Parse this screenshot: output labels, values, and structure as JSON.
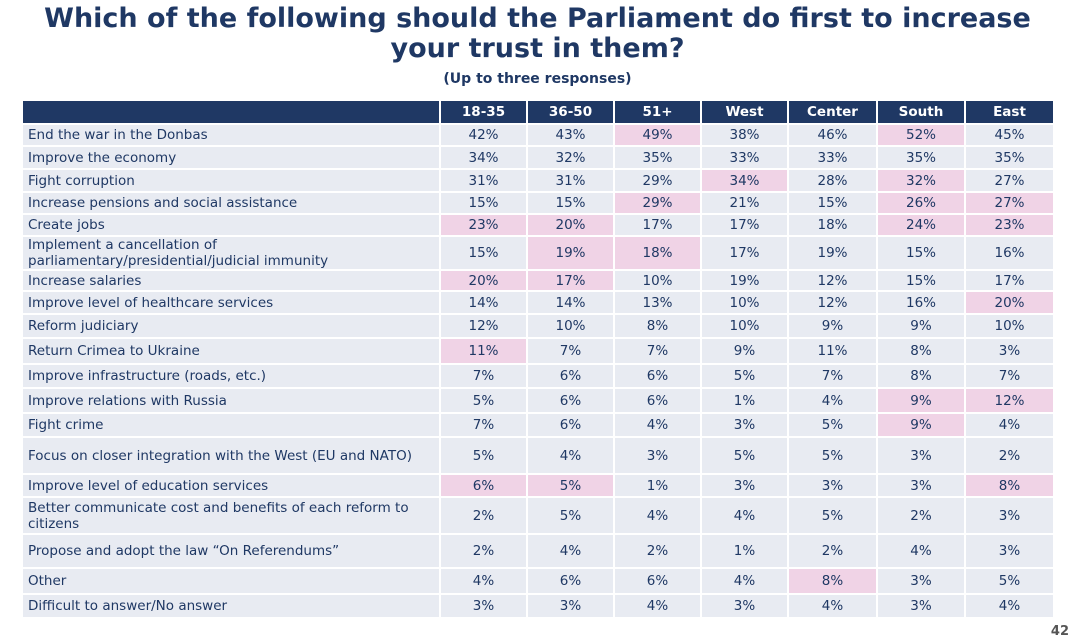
{
  "title_line1": "Which of the following should the Parliament do first to increase",
  "title_line2": "your trust in them?",
  "subtitle": "(Up to three responses)",
  "columns": [
    "18-35",
    "36-50",
    "51+",
    "West",
    "Center",
    "South",
    "East"
  ],
  "rows": [
    {
      "label": "End the war in the Donbas",
      "values": [
        "42%",
        "43%",
        "49%",
        "38%",
        "46%",
        "52%",
        "45%"
      ],
      "highlight": [
        2,
        5
      ]
    },
    {
      "label": "Improve the economy",
      "values": [
        "34%",
        "32%",
        "35%",
        "33%",
        "33%",
        "35%",
        "35%"
      ],
      "highlight": []
    },
    {
      "label": "Fight corruption",
      "values": [
        "31%",
        "31%",
        "29%",
        "34%",
        "28%",
        "32%",
        "27%"
      ],
      "highlight": [
        3,
        5
      ]
    },
    {
      "label": "Increase pensions and social assistance",
      "values": [
        "15%",
        "15%",
        "29%",
        "21%",
        "15%",
        "26%",
        "27%"
      ],
      "highlight": [
        2,
        5,
        6
      ]
    },
    {
      "label": "Create jobs",
      "values": [
        "23%",
        "20%",
        "17%",
        "17%",
        "18%",
        "24%",
        "23%"
      ],
      "highlight": [
        0,
        1,
        5,
        6
      ]
    },
    {
      "label": "Implement a cancellation of parliamentary/presidential/judicial immunity",
      "values": [
        "15%",
        "19%",
        "18%",
        "17%",
        "19%",
        "15%",
        "16%"
      ],
      "highlight": [
        1,
        2
      ]
    },
    {
      "label": "Increase salaries",
      "values": [
        "20%",
        "17%",
        "10%",
        "19%",
        "12%",
        "15%",
        "17%"
      ],
      "highlight": [
        0,
        1
      ]
    },
    {
      "label": "Improve level of healthcare services",
      "values": [
        "14%",
        "14%",
        "13%",
        "10%",
        "12%",
        "16%",
        "20%"
      ],
      "highlight": [
        6
      ]
    },
    {
      "label": "Reform judiciary",
      "values": [
        "12%",
        "10%",
        "8%",
        "10%",
        "9%",
        "9%",
        "10%"
      ],
      "highlight": []
    },
    {
      "label": "Return Crimea to Ukraine",
      "values": [
        "11%",
        "7%",
        "7%",
        "9%",
        "11%",
        "8%",
        "3%"
      ],
      "highlight": [
        0
      ]
    },
    {
      "label": "Improve infrastructure (roads, etc.)",
      "values": [
        "7%",
        "6%",
        "6%",
        "5%",
        "7%",
        "8%",
        "7%"
      ],
      "highlight": []
    },
    {
      "label": "Improve relations with Russia",
      "values": [
        "5%",
        "6%",
        "6%",
        "1%",
        "4%",
        "9%",
        "12%"
      ],
      "highlight": [
        5,
        6
      ]
    },
    {
      "label": "Fight crime",
      "values": [
        "7%",
        "6%",
        "4%",
        "3%",
        "5%",
        "9%",
        "4%"
      ],
      "highlight": [
        5
      ]
    },
    {
      "label": "Focus on closer integration with the West (EU and NATO)",
      "values": [
        "5%",
        "4%",
        "3%",
        "5%",
        "5%",
        "3%",
        "2%"
      ],
      "highlight": []
    },
    {
      "label": "Improve level of education services",
      "values": [
        "6%",
        "5%",
        "1%",
        "3%",
        "3%",
        "3%",
        "8%"
      ],
      "highlight": [
        0,
        1,
        6
      ]
    },
    {
      "label": "Better communicate cost and benefits of each reform to citizens",
      "values": [
        "2%",
        "5%",
        "4%",
        "4%",
        "5%",
        "2%",
        "3%"
      ],
      "highlight": []
    },
    {
      "label": "Propose and adopt the law “On Referendums”",
      "values": [
        "2%",
        "4%",
        "2%",
        "1%",
        "2%",
        "4%",
        "3%"
      ],
      "highlight": []
    },
    {
      "label": "Other",
      "values": [
        "4%",
        "6%",
        "6%",
        "4%",
        "8%",
        "3%",
        "5%"
      ],
      "highlight": [
        4
      ]
    },
    {
      "label": "Difficult to answer/No answer",
      "values": [
        "3%",
        "3%",
        "4%",
        "3%",
        "4%",
        "3%",
        "4%"
      ],
      "highlight": []
    }
  ],
  "row_heights": [
    22,
    23,
    23,
    22,
    22,
    33,
    21,
    23,
    24,
    26,
    24,
    25,
    24,
    37,
    23,
    37,
    34,
    26,
    23
  ],
  "highlight_color": "#f0d3e6",
  "cell_color": "#e8ebf2",
  "header_color": "#1f3864",
  "page_number": "42"
}
